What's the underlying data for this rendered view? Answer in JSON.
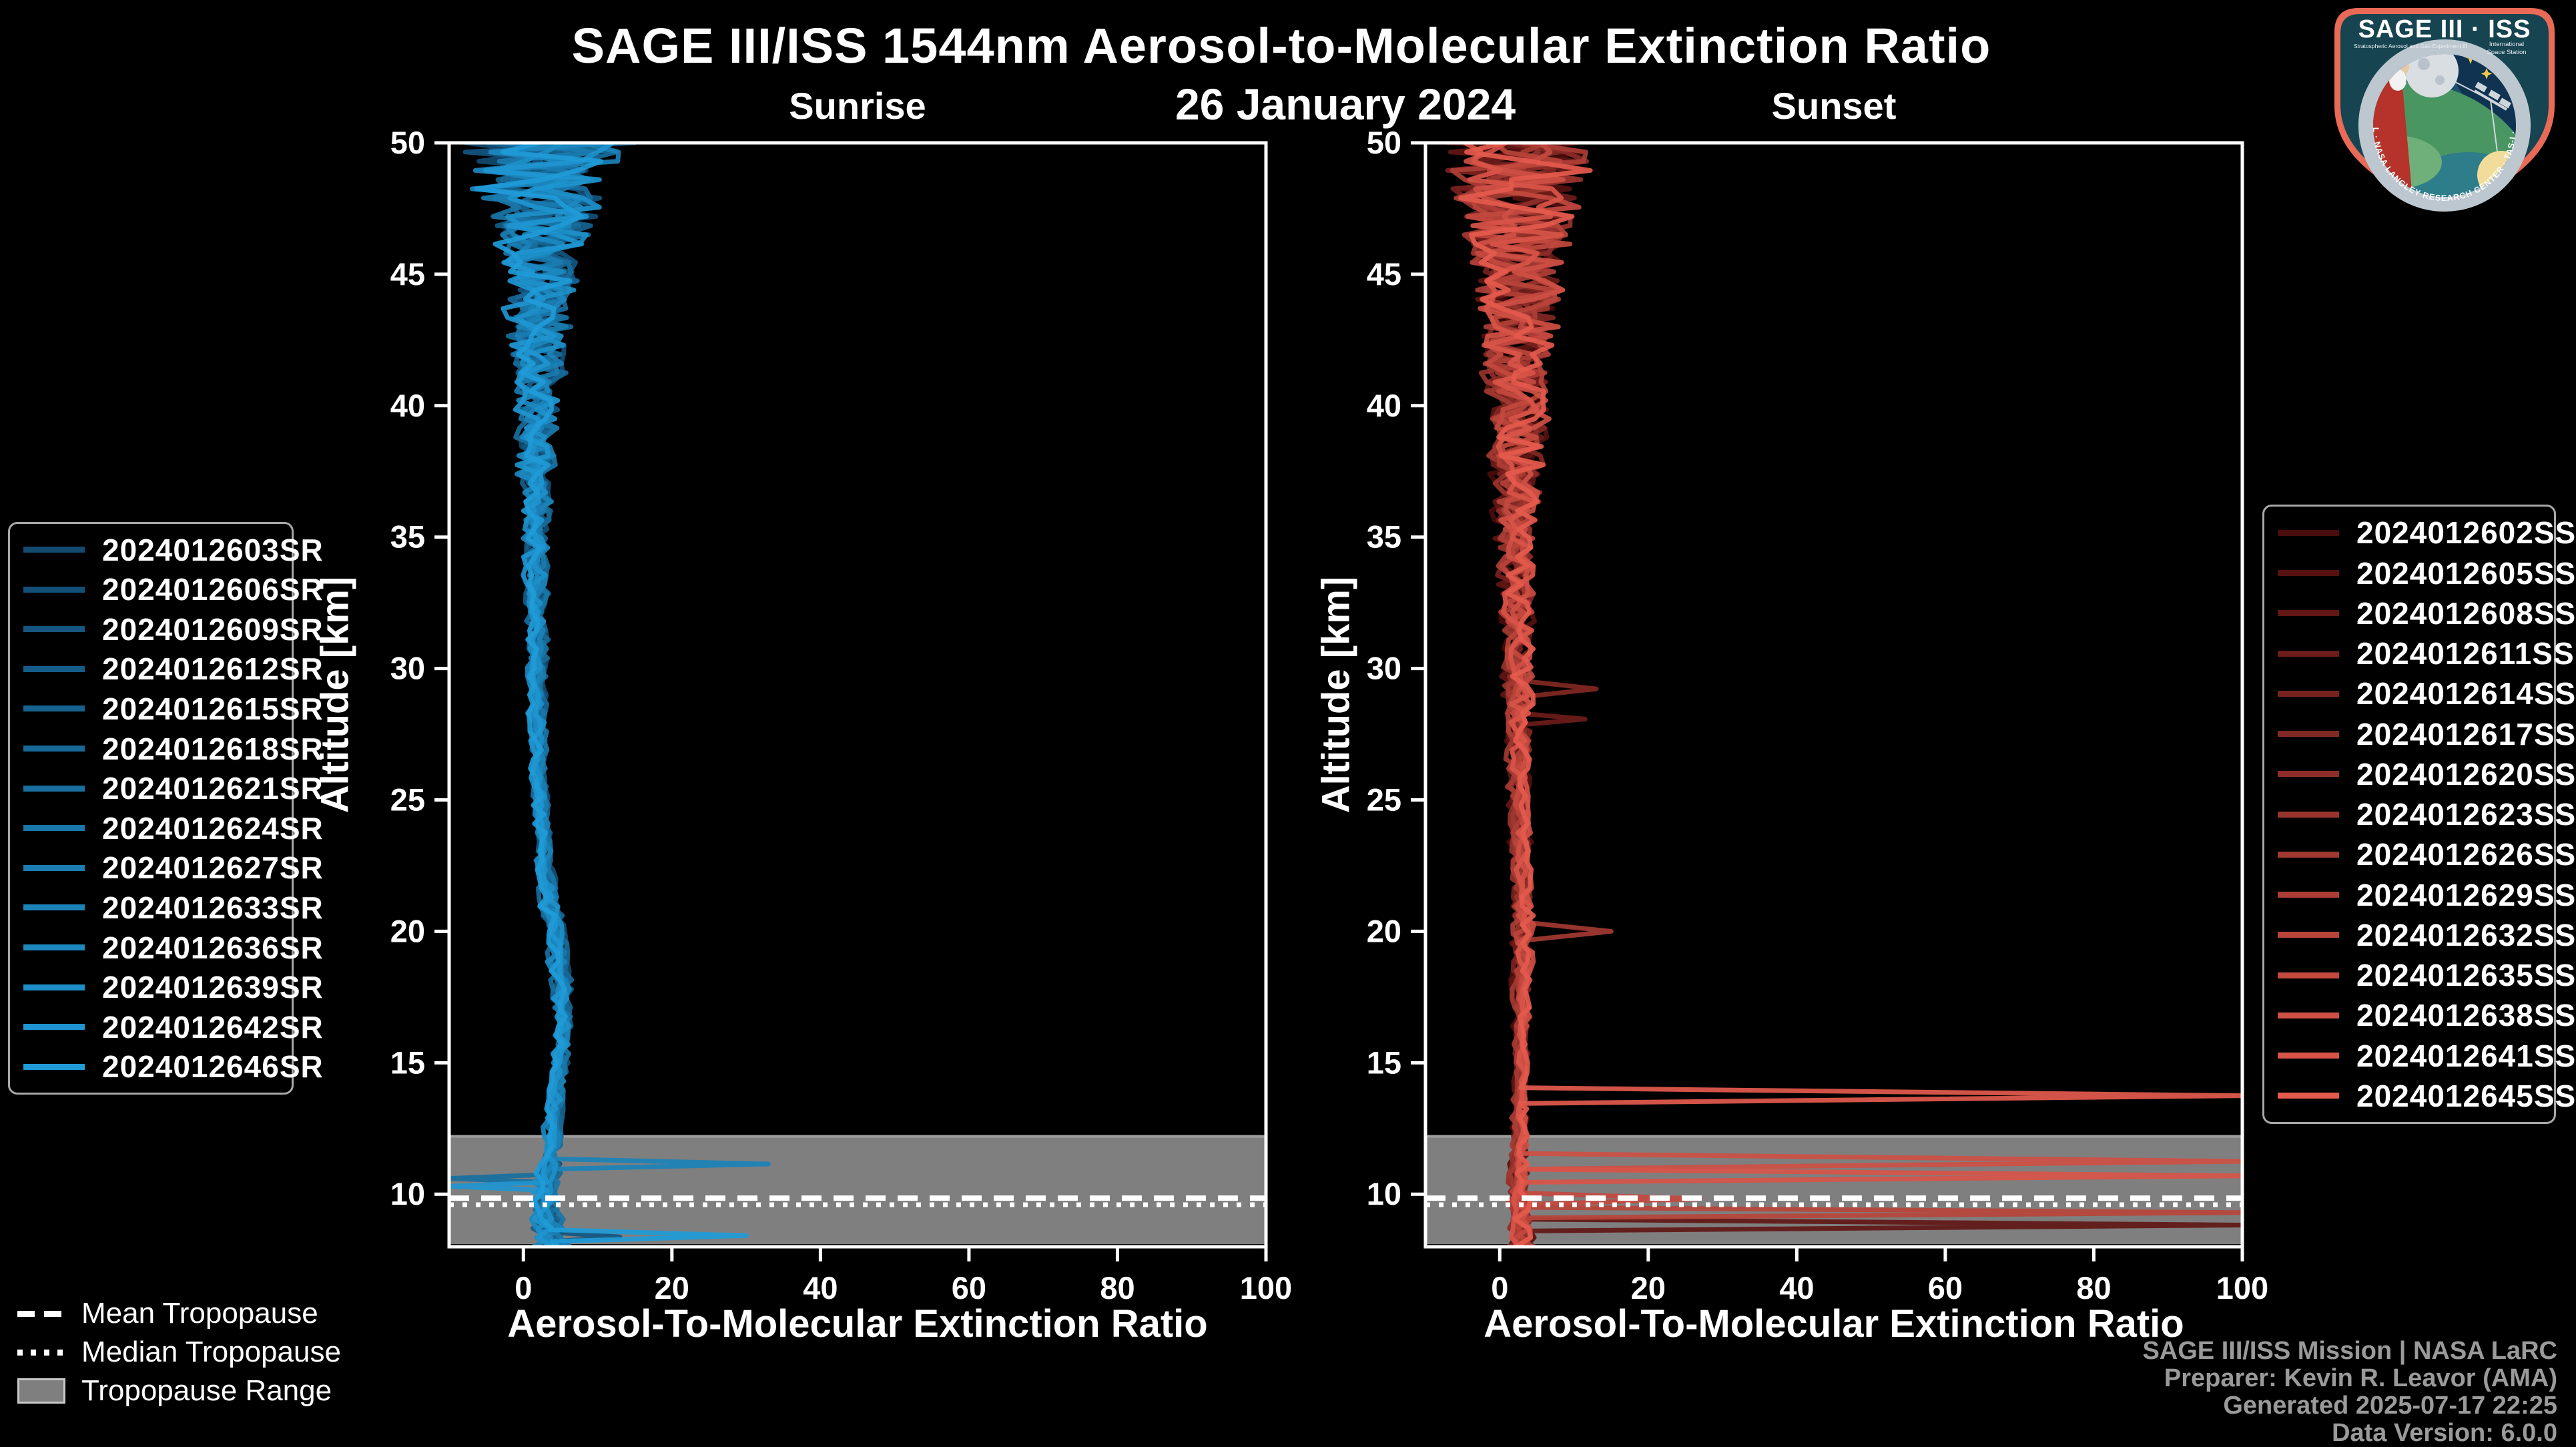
{
  "title": "SAGE III/ISS 1544nm Aerosol-to-Molecular Extinction Ratio",
  "subtitle": "26 January 2024",
  "footer": {
    "line1": "SAGE III/ISS Mission | NASA LaRC",
    "line2": "Preparer: Kevin R. Leavor (AMA)",
    "line3": "Generated 2025-07-17 22:25",
    "line4": "Data Version: 6.0.0"
  },
  "tropopause_legend": [
    {
      "label": "Mean Tropopause",
      "style": "dashed-white-line"
    },
    {
      "label": "Median Tropopause",
      "style": "dotted-white-line"
    },
    {
      "label": "Tropopause Range",
      "style": "gray-band"
    }
  ],
  "logo": {
    "title": "SAGE III · ISS",
    "sub_left": "Stratospheric Aerosol and Gas Experiment III",
    "sub_right1": "International",
    "sub_right2": "Space Station",
    "ring_text": "BALL · NASA LANGLEY RESEARCH CENTER · TAS-I · ESA"
  },
  "colors": {
    "background": "#000000",
    "axis": "#ffffff",
    "tropopause_band": "#7f7f7f",
    "tropopause_band_edge": "#9e9e9e",
    "footer_text": "#9a9a9a",
    "sunrise_gradient": [
      "#124a70",
      "#1f9bd8"
    ],
    "sunset_gradient": [
      "#4b0c0c",
      "#e45a4d"
    ]
  },
  "chart_data": [
    {
      "type": "line",
      "title": "Sunrise",
      "xlabel": "Aerosol-To-Molecular Extinction Ratio",
      "ylabel": "Altitude [km]",
      "xlim": [
        -10,
        100
      ],
      "ylim": [
        8,
        50
      ],
      "xticks": [
        0,
        20,
        40,
        60,
        80,
        100
      ],
      "yticks": [
        50,
        45,
        40,
        35,
        30,
        25,
        20,
        15,
        10
      ],
      "grid": false,
      "legend_position": "outside-left",
      "tropopause": {
        "mean_km": 9.85,
        "median_km": 9.6,
        "range_km": [
          8.1,
          12.2
        ]
      },
      "envelope": {
        "altitudes_km": [
          50,
          48,
          46,
          44,
          42,
          40,
          38,
          36,
          34,
          32,
          30,
          28,
          26,
          24,
          22,
          20,
          18,
          16,
          14,
          13,
          12,
          11,
          10,
          9.5,
          9,
          8.5,
          8
        ],
        "center": [
          3,
          2.6,
          2.3,
          2.1,
          2,
          1.9,
          1.8,
          1.8,
          1.8,
          1.8,
          1.9,
          2,
          2.2,
          2.6,
          3.2,
          4.2,
          5.2,
          5.4,
          4.6,
          4.2,
          3.8,
          3.4,
          3.1,
          3.2,
          3.4,
          3.7,
          4
        ],
        "spread": [
          12,
          8.5,
          6,
          4.5,
          3.6,
          2.9,
          2.3,
          1.8,
          1.4,
          1.1,
          1,
          0.9,
          0.8,
          0.8,
          0.9,
          1.1,
          1,
          0.8,
          0.8,
          0.9,
          1,
          1.2,
          1.5,
          1.7,
          1.9,
          2.1,
          2.3
        ]
      },
      "series": [
        {
          "label": "2024012603SR",
          "color": "#124a70",
          "seed": 3,
          "spikes": []
        },
        {
          "label": "2024012606SR",
          "color": "#135078",
          "seed": 20,
          "spikes": []
        },
        {
          "label": "2024012609SR",
          "color": "#145680",
          "seed": 37,
          "spikes": [
            [
              8.55,
              13,
              8.2
            ]
          ]
        },
        {
          "label": "2024012612SR",
          "color": "#155d88",
          "seed": 54,
          "spikes": []
        },
        {
          "label": "2024012615SR",
          "color": "#166390",
          "seed": 71,
          "spikes": []
        },
        {
          "label": "2024012618SR",
          "color": "#176998",
          "seed": 88,
          "spikes": []
        },
        {
          "label": "2024012621SR",
          "color": "#186fa0",
          "seed": 105,
          "spikes": [
            [
              10.75,
              -10,
              10.45
            ]
          ]
        },
        {
          "label": "2024012624SR",
          "color": "#1976a8",
          "seed": 122,
          "spikes": []
        },
        {
          "label": "2024012627SR",
          "color": "#1a7cb0",
          "seed": 139,
          "spikes": []
        },
        {
          "label": "2024012633SR",
          "color": "#1b82b8",
          "seed": 156,
          "spikes": [
            [
              11.35,
              33,
              10.95
            ]
          ]
        },
        {
          "label": "2024012636SR",
          "color": "#1c88c0",
          "seed": 173,
          "spikes": []
        },
        {
          "label": "2024012639SR",
          "color": "#1d8fc8",
          "seed": 190,
          "spikes": []
        },
        {
          "label": "2024012642SR",
          "color": "#1e95d0",
          "seed": 207,
          "spikes": [
            [
              10.45,
              -10,
              10.15
            ]
          ]
        },
        {
          "label": "2024012646SR",
          "color": "#1f9bd8",
          "seed": 224,
          "spikes": [
            [
              8.65,
              30,
              8.2
            ]
          ]
        }
      ]
    },
    {
      "type": "line",
      "title": "Sunset",
      "xlabel": "Aerosol-To-Molecular Extinction Ratio",
      "ylabel": "Altitude [km]",
      "xlim": [
        -10,
        100
      ],
      "ylim": [
        8,
        50
      ],
      "xticks": [
        0,
        20,
        40,
        60,
        80,
        100
      ],
      "yticks": [
        50,
        45,
        40,
        35,
        30,
        25,
        20,
        15,
        10
      ],
      "grid": false,
      "legend_position": "outside-right",
      "tropopause": {
        "mean_km": 9.85,
        "median_km": 9.6,
        "range_km": [
          8.1,
          12.2
        ]
      },
      "envelope": {
        "altitudes_km": [
          50,
          48,
          46,
          44,
          42,
          40,
          38,
          36,
          34,
          32,
          30,
          28,
          26,
          24,
          22,
          20,
          18,
          16,
          14,
          13,
          12,
          11,
          10,
          9.5,
          9,
          8.5,
          8
        ],
        "center": [
          2.5,
          2.5,
          2.4,
          2.4,
          2.4,
          2.4,
          2.3,
          2.3,
          2.2,
          2.3,
          2.4,
          2.5,
          2.6,
          2.8,
          3,
          3.2,
          3,
          2.9,
          2.8,
          2.7,
          2.6,
          2.5,
          2.5,
          2.5,
          2.6,
          2.7,
          2.8
        ],
        "spread": [
          10,
          8.5,
          7,
          5.8,
          4.8,
          4,
          3.4,
          2.9,
          2.4,
          2,
          1.7,
          1.4,
          1.1,
          1,
          1,
          1.3,
          0.9,
          0.7,
          0.6,
          0.7,
          0.8,
          0.9,
          1.1,
          1.2,
          1.4,
          1.6,
          1.8
        ]
      },
      "series": [
        {
          "label": "2024012602SS",
          "color": "#4b0c0c",
          "seed": 7,
          "spikes": []
        },
        {
          "label": "2024012605SS",
          "color": "#561211",
          "seed": 30,
          "spikes": []
        },
        {
          "label": "2024012608SS",
          "color": "#611715",
          "seed": 53,
          "spikes": [
            [
              9.05,
              100,
              8.6
            ]
          ]
        },
        {
          "label": "2024012611SS",
          "color": "#6c1d1a",
          "seed": 76,
          "spikes": [
            [
              28.3,
              11.5,
              27.85
            ]
          ]
        },
        {
          "label": "2024012614SS",
          "color": "#77221f",
          "seed": 99,
          "spikes": []
        },
        {
          "label": "2024012617SS",
          "color": "#822823",
          "seed": 122,
          "spikes": [
            [
              29.55,
              13,
              28.9
            ]
          ]
        },
        {
          "label": "2024012620SS",
          "color": "#8d2d28",
          "seed": 145,
          "spikes": []
        },
        {
          "label": "2024012623SS",
          "color": "#98332d",
          "seed": 168,
          "spikes": []
        },
        {
          "label": "2024012626SS",
          "color": "#a23931",
          "seed": 191,
          "spikes": [
            [
              20.35,
              15,
              19.65
            ]
          ]
        },
        {
          "label": "2024012629SS",
          "color": "#ad3e36",
          "seed": 214,
          "spikes": []
        },
        {
          "label": "2024012632SS",
          "color": "#b8443a",
          "seed": 237,
          "spikes": [
            [
              9.5,
              100,
              9.1
            ]
          ]
        },
        {
          "label": "2024012635SS",
          "color": "#c3493f",
          "seed": 260,
          "spikes": [
            [
              10.05,
              27,
              9.6
            ]
          ]
        },
        {
          "label": "2024012638SS",
          "color": "#ce4f44",
          "seed": 283,
          "spikes": [
            [
              11.55,
              100,
              10.95
            ]
          ]
        },
        {
          "label": "2024012641SS",
          "color": "#d95448",
          "seed": 306,
          "spikes": [
            [
              10.95,
              100,
              10.45
            ]
          ]
        },
        {
          "label": "2024012645SS",
          "color": "#e45a4d",
          "seed": 329,
          "spikes": [
            [
              14.05,
              100,
              13.45
            ]
          ]
        }
      ]
    }
  ]
}
